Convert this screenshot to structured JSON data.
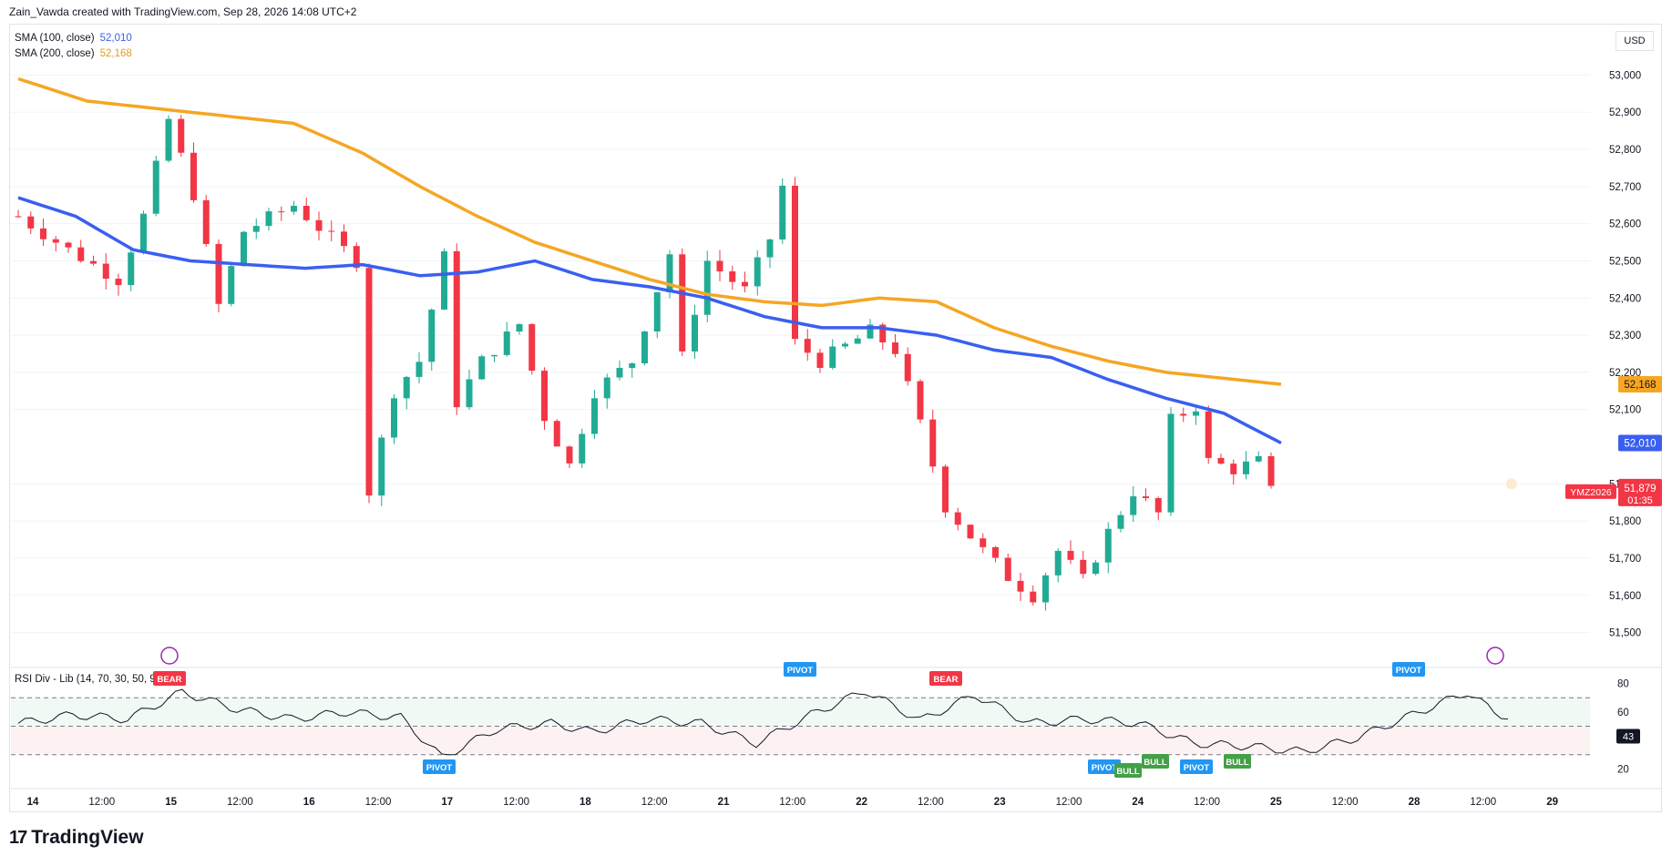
{
  "header": {
    "attribution": "Zain_Vawda created with TradingView.com, Sep 28, 2026 14:08 UTC+2"
  },
  "indicators": [
    {
      "label": "SMA (100, close)",
      "value": "52,010",
      "color": "#3a5ff0"
    },
    {
      "label": "SMA (200, close)",
      "value": "52,168",
      "color": "#f5a623"
    }
  ],
  "rsi_panel": {
    "title": "RSI Div - Lib (14, 70, 30, 50, 90)",
    "value": "43",
    "axis_labels": [
      "80",
      "60",
      "20"
    ],
    "tags": [
      {
        "text": "BEAR",
        "kind": "bear",
        "slot": 0
      },
      {
        "text": "PIVOT",
        "kind": "pivot-low",
        "slot": 1
      },
      {
        "text": "PIVOT",
        "kind": "pivot-high",
        "slot": 2
      },
      {
        "text": "BEAR",
        "kind": "bear",
        "slot": 3
      },
      {
        "text": "PIVOT",
        "kind": "pivot-low",
        "slot": 4
      },
      {
        "text": "BULL",
        "kind": "bull",
        "slot": 5
      },
      {
        "text": "BULL",
        "kind": "bull",
        "slot": 6
      },
      {
        "text": "PIVOT",
        "kind": "pivot-low",
        "slot": 7
      },
      {
        "text": "BULL",
        "kind": "bull",
        "slot": 8
      },
      {
        "text": "PIVOT",
        "kind": "pivot-high",
        "slot": 9
      }
    ]
  },
  "price_axis": {
    "currency": "USD",
    "symbol": "YMZ2026",
    "last_price": "51,879",
    "countdown": "01:35",
    "sma100_tag": "52,010",
    "sma200_tag": "52,168",
    "colors": {
      "up": "#22ab94",
      "down": "#f23645",
      "sma100": "#3a5ff0",
      "sma200": "#f5a623"
    }
  },
  "footer": {
    "brand": "TradingView"
  },
  "chart_data": {
    "type": "candlestick",
    "y_ticks": [
      53000,
      52900,
      52800,
      52700,
      52600,
      52500,
      52400,
      52300,
      52200,
      52100,
      51900,
      51800,
      51700,
      51600,
      51500
    ],
    "y_tick_labels": [
      "53,000",
      "52,900",
      "52,800",
      "52,700",
      "52,600",
      "52,500",
      "52,400",
      "52,300",
      "52,200",
      "52,100",
      "51,900",
      "51,800",
      "51,700",
      "51,600",
      "51,500"
    ],
    "ylim": [
      51450,
      53050
    ],
    "x_ticks": [
      "14",
      "12:00",
      "15",
      "12:00",
      "16",
      "12:00",
      "17",
      "12:00",
      "18",
      "12:00",
      "21",
      "12:00",
      "22",
      "12:00",
      "23",
      "12:00",
      "24",
      "12:00",
      "25",
      "12:00",
      "28",
      "12:00",
      "29"
    ],
    "bold_x_ticks": [
      "14",
      "15",
      "16",
      "17",
      "18",
      "21",
      "22",
      "23",
      "24",
      "25",
      "28",
      "29"
    ],
    "series": [
      {
        "name": "SMA (100, close)",
        "keypoints": [
          [
            0,
            52670
          ],
          [
            5,
            52620
          ],
          [
            10,
            52530
          ],
          [
            15,
            52500
          ],
          [
            20,
            52490
          ],
          [
            25,
            52480
          ],
          [
            30,
            52490
          ],
          [
            35,
            52460
          ],
          [
            40,
            52470
          ],
          [
            45,
            52500
          ],
          [
            50,
            52450
          ],
          [
            55,
            52430
          ],
          [
            60,
            52400
          ],
          [
            65,
            52350
          ],
          [
            70,
            52320
          ],
          [
            75,
            52320
          ],
          [
            80,
            52300
          ],
          [
            85,
            52260
          ],
          [
            90,
            52240
          ],
          [
            95,
            52180
          ],
          [
            100,
            52130
          ],
          [
            105,
            52090
          ],
          [
            110,
            52010
          ]
        ]
      },
      {
        "name": "SMA (200, close)",
        "keypoints": [
          [
            0,
            52990
          ],
          [
            6,
            52930
          ],
          [
            12,
            52910
          ],
          [
            18,
            52890
          ],
          [
            24,
            52870
          ],
          [
            30,
            52790
          ],
          [
            35,
            52700
          ],
          [
            40,
            52620
          ],
          [
            45,
            52550
          ],
          [
            50,
            52500
          ],
          [
            55,
            52450
          ],
          [
            60,
            52410
          ],
          [
            65,
            52390
          ],
          [
            70,
            52380
          ],
          [
            75,
            52400
          ],
          [
            80,
            52390
          ],
          [
            85,
            52320
          ],
          [
            90,
            52270
          ],
          [
            95,
            52230
          ],
          [
            100,
            52200
          ],
          [
            110,
            52168
          ]
        ]
      }
    ],
    "rsi_keypoints": [
      [
        0,
        52
      ],
      [
        4,
        58
      ],
      [
        8,
        55
      ],
      [
        12,
        74
      ],
      [
        16,
        62
      ],
      [
        20,
        55
      ],
      [
        24,
        60
      ],
      [
        28,
        56
      ],
      [
        31,
        28
      ],
      [
        35,
        48
      ],
      [
        39,
        52
      ],
      [
        42,
        46
      ],
      [
        46,
        55
      ],
      [
        50,
        52
      ],
      [
        54,
        38
      ],
      [
        58,
        58
      ],
      [
        62,
        75
      ],
      [
        66,
        54
      ],
      [
        70,
        72
      ],
      [
        74,
        52
      ],
      [
        78,
        55
      ],
      [
        82,
        52
      ],
      [
        86,
        38
      ],
      [
        90,
        36
      ],
      [
        94,
        32
      ],
      [
        98,
        42
      ],
      [
        102,
        58
      ],
      [
        106,
        74
      ],
      [
        108,
        60
      ],
      [
        111,
        50
      ],
      [
        112,
        43
      ]
    ],
    "rsi_lines": [
      70,
      50,
      30
    ]
  }
}
